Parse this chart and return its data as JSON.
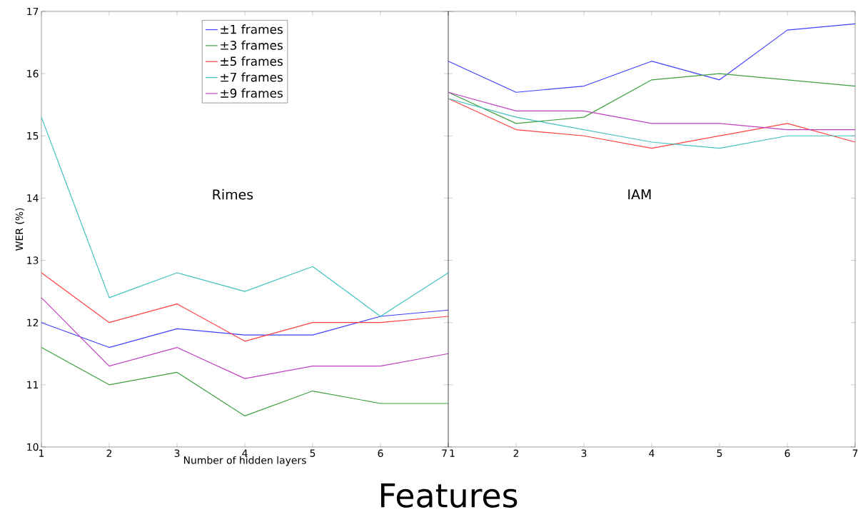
{
  "chart_data": [
    {
      "type": "line",
      "xlabel": "Number of hidden layers",
      "ylabel": "WER (%)",
      "x": [
        1,
        2,
        3,
        4,
        5,
        6,
        7
      ],
      "xlim": [
        1,
        7
      ],
      "ylim": [
        10,
        17
      ],
      "xticks": [
        1,
        2,
        3,
        4,
        5,
        6,
        7
      ],
      "yticks": [
        10,
        11,
        12,
        13,
        14,
        15,
        16,
        17
      ],
      "legend": "top",
      "line_style": "solid",
      "annotations": [
        "Rimes",
        "Features"
      ],
      "series": [
        {
          "name": "±1 frames",
          "color": "#4040ff",
          "values": [
            12.0,
            11.6,
            11.9,
            11.8,
            11.8,
            12.1,
            12.2
          ]
        },
        {
          "name": "±3 frames",
          "color": "#3f9f3f",
          "values": [
            11.6,
            11.0,
            11.2,
            10.5,
            10.9,
            10.7,
            10.7
          ]
        },
        {
          "name": "±5 frames",
          "color": "#ff4040",
          "values": [
            12.8,
            12.0,
            12.3,
            11.7,
            12.0,
            12.0,
            12.1
          ]
        },
        {
          "name": "±7 frames",
          "color": "#40c0c0",
          "values": [
            15.3,
            12.4,
            12.8,
            12.5,
            12.9,
            12.1,
            12.8
          ]
        },
        {
          "name": "±9 frames",
          "color": "#c040c0",
          "values": [
            12.4,
            11.3,
            11.6,
            11.1,
            11.3,
            11.3,
            11.5
          ]
        }
      ]
    },
    {
      "type": "line",
      "x": [
        1,
        2,
        3,
        4,
        5,
        6,
        7
      ],
      "xlim": [
        1,
        7
      ],
      "ylim": [
        10,
        17
      ],
      "xticks": [
        1,
        2,
        3,
        4,
        5,
        6,
        7
      ],
      "yticks": [
        10,
        11,
        12,
        13,
        14,
        15,
        16,
        17
      ],
      "tick_labels": "x",
      "line_style": "solid",
      "annotations": [
        "IAM"
      ],
      "series": [
        {
          "color": "#4040ff",
          "values": [
            16.2,
            15.7,
            15.8,
            16.2,
            15.9,
            16.7,
            16.8
          ]
        },
        {
          "color": "#3f9f3f",
          "values": [
            15.7,
            15.2,
            15.3,
            15.9,
            16.0,
            15.9,
            15.8
          ]
        },
        {
          "color": "#ff4040",
          "values": [
            15.6,
            15.1,
            15.0,
            14.8,
            15.0,
            15.2,
            14.9
          ]
        },
        {
          "color": "#40c0c0",
          "values": [
            15.6,
            15.3,
            15.1,
            14.9,
            14.8,
            15.0,
            15.0
          ]
        },
        {
          "color": "#c040c0",
          "values": [
            15.7,
            15.4,
            15.4,
            15.2,
            15.2,
            15.1,
            15.1
          ]
        }
      ]
    }
  ]
}
